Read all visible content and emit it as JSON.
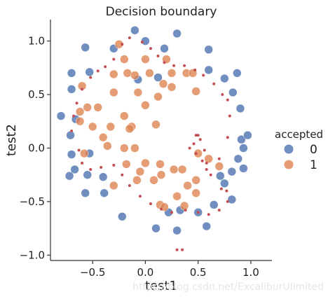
{
  "chart_data": {
    "type": "scatter",
    "title": "Decision boundary",
    "xlabel": "test1",
    "ylabel": "test2",
    "xlim": [
      -0.9,
      1.2
    ],
    "ylim": [
      -1.05,
      1.2
    ],
    "xticks": [
      -0.5,
      0.0,
      0.5,
      1.0
    ],
    "xtick_labels": [
      "−0.5",
      "0.0",
      "0.5",
      "1.0"
    ],
    "yticks": [
      -1.0,
      -0.5,
      0.0,
      0.5,
      1.0
    ],
    "ytick_labels": [
      "−1.0",
      "−0.5",
      "0.0",
      "0.5",
      "1.0"
    ],
    "grid": false,
    "legend": {
      "title": "accepted",
      "placement": "right",
      "entries": [
        {
          "label": "0",
          "color": "#4c72b0"
        },
        {
          "label": "1",
          "color": "#dd8452"
        }
      ]
    },
    "series": [
      {
        "name": "0",
        "color": "#4c72b0",
        "points": [
          [
            -0.1,
            1.1
          ],
          [
            0.3,
            1.07
          ],
          [
            -0.57,
            0.94
          ],
          [
            -0.3,
            0.93
          ],
          [
            0.0,
            1.0
          ],
          [
            0.18,
            0.93
          ],
          [
            0.6,
            0.92
          ],
          [
            -0.7,
            0.7
          ],
          [
            -0.53,
            0.71
          ],
          [
            0.87,
            0.7
          ],
          [
            0.12,
            0.66
          ],
          [
            -0.07,
            0.64
          ],
          [
            0.6,
            0.73
          ],
          [
            0.75,
            0.65
          ],
          [
            -0.7,
            0.55
          ],
          [
            0.83,
            0.52
          ],
          [
            0.9,
            0.37
          ],
          [
            -0.8,
            0.3
          ],
          [
            -0.66,
            0.27
          ],
          [
            0.91,
            0.08
          ],
          [
            -0.71,
            0.12
          ],
          [
            0.97,
            0.12
          ],
          [
            0.93,
            0.0
          ],
          [
            -0.7,
            -0.06
          ],
          [
            -0.53,
            -0.05
          ],
          [
            0.88,
            -0.1
          ],
          [
            -0.67,
            -0.2
          ],
          [
            0.82,
            -0.22
          ],
          [
            -0.72,
            -0.26
          ],
          [
            0.71,
            -0.26
          ],
          [
            -0.55,
            -0.25
          ],
          [
            0.93,
            -0.19
          ],
          [
            -0.4,
            -0.27
          ],
          [
            0.75,
            -0.33
          ],
          [
            -0.57,
            -0.42
          ],
          [
            -0.39,
            -0.42
          ],
          [
            0.82,
            -0.48
          ],
          [
            0.65,
            -0.53
          ],
          [
            0.33,
            -0.58
          ],
          [
            0.22,
            -0.6
          ],
          [
            0.5,
            -0.6
          ],
          [
            -0.22,
            -0.64
          ],
          [
            0.58,
            -0.73
          ],
          [
            0.1,
            -0.75
          ],
          [
            0.3,
            -0.77
          ]
        ]
      },
      {
        "name": "1",
        "color": "#dd8452",
        "points": [
          [
            -0.25,
            0.97
          ],
          [
            -0.2,
            0.83
          ],
          [
            0.0,
            0.83
          ],
          [
            0.2,
            0.83
          ],
          [
            -0.17,
            0.7
          ],
          [
            0.04,
            0.7
          ],
          [
            0.25,
            0.7
          ],
          [
            0.39,
            0.7
          ],
          [
            0.45,
            0.7
          ],
          [
            -0.3,
            0.69
          ],
          [
            -0.1,
            0.68
          ],
          [
            -0.3,
            0.52
          ],
          [
            -0.07,
            0.52
          ],
          [
            0.17,
            0.6
          ],
          [
            0.25,
            0.57
          ],
          [
            0.48,
            0.53
          ],
          [
            -0.6,
            0.58
          ],
          [
            -0.55,
            0.38
          ],
          [
            -0.45,
            0.38
          ],
          [
            0.0,
            0.4
          ],
          [
            0.12,
            0.48
          ],
          [
            -0.62,
            0.34
          ],
          [
            -0.62,
            0.25
          ],
          [
            -0.2,
            0.3
          ],
          [
            0.1,
            0.22
          ],
          [
            -0.13,
            0.2
          ],
          [
            -0.5,
            0.2
          ],
          [
            -0.33,
            0.2
          ],
          [
            -0.15,
            0.18
          ],
          [
            -0.4,
            0.1
          ],
          [
            -0.2,
            0.0
          ],
          [
            -0.1,
            0.0
          ],
          [
            -0.58,
            -0.05
          ],
          [
            -0.36,
            0.02
          ],
          [
            0.0,
            -0.14
          ],
          [
            0.14,
            -0.15
          ],
          [
            0.27,
            -0.2
          ],
          [
            0.35,
            -0.2
          ],
          [
            -0.3,
            -0.35
          ],
          [
            -0.18,
            -0.15
          ],
          [
            -0.05,
            -0.22
          ],
          [
            -0.08,
            -0.3
          ],
          [
            0.08,
            -0.3
          ],
          [
            0.15,
            -0.25
          ],
          [
            0.4,
            -0.35
          ],
          [
            0.48,
            -0.3
          ],
          [
            0.7,
            -0.17
          ],
          [
            0.6,
            -0.1
          ],
          [
            0.5,
            -0.05
          ],
          [
            0.48,
            -0.42
          ],
          [
            0.3,
            -0.45
          ],
          [
            0.14,
            -0.53
          ],
          [
            0.18,
            -0.55
          ],
          [
            0.37,
            -0.54
          ]
        ]
      },
      {
        "name": "",
        "color": "#c44e52",
        "points": [
          [
            -0.15,
            1.03
          ],
          [
            -0.22,
            0.97
          ],
          [
            -0.3,
            0.83
          ],
          [
            -0.38,
            0.76
          ],
          [
            -0.45,
            0.72
          ],
          [
            -0.52,
            0.66
          ],
          [
            -0.6,
            0.55
          ],
          [
            -0.65,
            0.42
          ],
          [
            -0.68,
            0.3
          ],
          [
            -0.7,
            0.16
          ],
          [
            -0.63,
            -0.02
          ],
          [
            -0.6,
            -0.14
          ],
          [
            -0.52,
            -0.2
          ],
          [
            -0.42,
            -0.18
          ],
          [
            -0.3,
            -0.16
          ],
          [
            -0.22,
            -0.25
          ],
          [
            -0.15,
            -0.35
          ],
          [
            -0.05,
            -0.45
          ],
          [
            0.05,
            -0.52
          ],
          [
            0.15,
            -0.57
          ],
          [
            0.25,
            -0.6
          ],
          [
            0.38,
            -0.58
          ],
          [
            0.5,
            -0.6
          ],
          [
            0.6,
            -0.62
          ],
          [
            0.7,
            -0.58
          ],
          [
            0.78,
            -0.5
          ],
          [
            0.77,
            -0.4
          ],
          [
            0.72,
            -0.38
          ],
          [
            0.62,
            -0.25
          ],
          [
            0.58,
            -0.14
          ],
          [
            0.56,
            -0.02
          ],
          [
            0.52,
            0.08
          ],
          [
            0.5,
            0.12
          ],
          [
            0.48,
            0.12
          ],
          [
            0.46,
            0.04
          ],
          [
            0.42,
            0.0
          ],
          [
            0.48,
            -0.05
          ],
          [
            0.54,
            -0.12
          ],
          [
            0.58,
            -0.2
          ],
          [
            0.7,
            -0.1
          ],
          [
            0.78,
            0.1
          ],
          [
            0.8,
            0.3
          ],
          [
            0.78,
            0.45
          ],
          [
            0.73,
            0.5
          ],
          [
            0.65,
            0.6
          ],
          [
            0.55,
            0.68
          ],
          [
            0.47,
            0.73
          ],
          [
            0.37,
            0.77
          ],
          [
            0.27,
            0.77
          ],
          [
            0.18,
            0.8
          ],
          [
            0.12,
            0.86
          ],
          [
            0.05,
            0.93
          ],
          [
            -0.03,
            0.99
          ],
          [
            0.3,
            -0.95
          ],
          [
            0.35,
            -0.95
          ]
        ]
      }
    ]
  },
  "watermark": "https://blog.csdn.net/ExcaliburUlimited"
}
